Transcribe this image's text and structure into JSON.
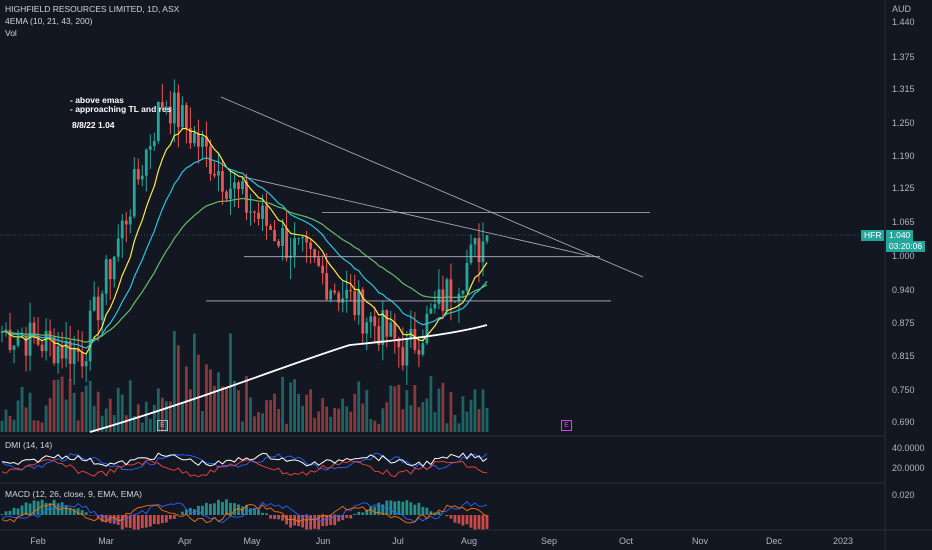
{
  "header": {
    "title": "HIGHFIELD RESOURCES LIMITED, 1D, ASX",
    "ema_label": "4EMA (10, 21, 43, 200)",
    "vol_label": "Vol",
    "dmi_label": "DMI (14, 14)",
    "macd_label": "MACD (12, 26, close, 9, EMA, EMA)"
  },
  "notes": {
    "line1": "- above emas",
    "line2": "- approaching TL and res",
    "line3": "8/8/22 1.04"
  },
  "axis": {
    "currency": "AUD",
    "price_ticks": [
      "1.440",
      "1.375",
      "1.315",
      "1.250",
      "1.190",
      "1.125",
      "1.065",
      "1.000",
      "0.940",
      "0.875",
      "0.815",
      "0.750",
      "0.690"
    ],
    "dmi_ticks": [
      "40.0000",
      "20.0000"
    ],
    "macd_ticks": [
      "0.020"
    ],
    "months": [
      "Feb",
      "Mar",
      "Apr",
      "May",
      "Jun",
      "Jul",
      "Aug",
      "Sep",
      "Oct",
      "Nov",
      "Dec",
      "2023"
    ]
  },
  "price_badge": {
    "symbol": "HFR",
    "price": "1.040",
    "countdown": "03:20:06"
  },
  "earnings_markers": [
    "E",
    "E"
  ],
  "colors": {
    "background": "#131722",
    "up": "#26a69a",
    "down": "#ef5350",
    "ema10": "#ffeb3b",
    "ema21": "#26c6da",
    "ema43": "#66bb6a",
    "ema200": "#ffffff",
    "trendline": "#b2b5be",
    "dmi_plus": "#2962ff",
    "dmi_minus": "#f44336",
    "adx": "#ffffff",
    "macd_line": "#2962ff",
    "macd_signal": "#ff6d00",
    "earnings_future": "#e040fb"
  },
  "chart_data": {
    "type": "line",
    "series": [
      {
        "name": "HFR",
        "x": [
          "Feb",
          "Mar",
          "Apr",
          "May",
          "Jun",
          "Jul",
          "Aug"
        ],
        "values": [
          0.86,
          0.82,
          1.3,
          1.1,
          0.96,
          0.82,
          1.04
        ]
      }
    ],
    "last_price": 1.04,
    "ylim": [
      0.69,
      1.44
    ],
    "resistance_levels": [
      1.083,
      1.0,
      0.917
    ],
    "dmi_range": [
      0,
      50
    ],
    "log_scale": false,
    "grid": false
  }
}
